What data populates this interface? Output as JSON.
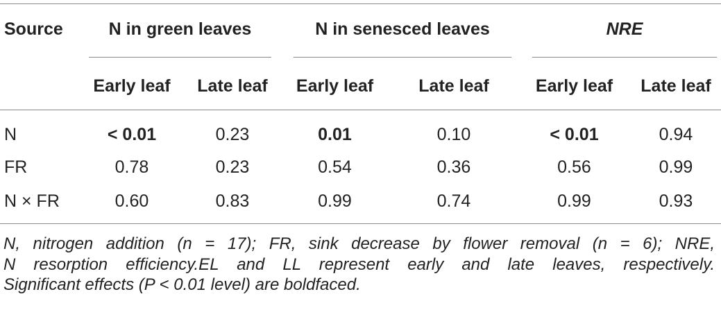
{
  "table": {
    "headers": {
      "source": "Source",
      "groups": [
        "N in green leaves",
        "N in senesced leaves",
        "NRE"
      ],
      "subheaders": [
        "Early leaf",
        "Late leaf",
        "Early leaf",
        "Late leaf",
        "Early leaf",
        "Late leaf"
      ]
    },
    "rows": [
      {
        "source": "N",
        "values": [
          "< 0.01",
          "0.23",
          "0.01",
          "0.10",
          "< 0.01",
          "0.94"
        ],
        "bold": [
          true,
          false,
          true,
          false,
          true,
          false
        ]
      },
      {
        "source": "FR",
        "values": [
          "0.78",
          "0.23",
          "0.54",
          "0.36",
          "0.56",
          "0.99"
        ],
        "bold": [
          false,
          false,
          false,
          false,
          false,
          false
        ]
      },
      {
        "source": "N × FR",
        "values": [
          "0.60",
          "0.83",
          "0.99",
          "0.74",
          "0.99",
          "0.93"
        ],
        "bold": [
          false,
          false,
          false,
          false,
          false,
          false
        ]
      }
    ]
  },
  "footnote": {
    "line1": "N, nitrogen addition (n = 17); FR, sink decrease by flower removal (n = 6); NRE,",
    "line2": "N resorption efficiency.EL and LL represent early and late leaves, respectively.",
    "line3": "Significant effects (P < 0.01 level) are boldfaced."
  }
}
